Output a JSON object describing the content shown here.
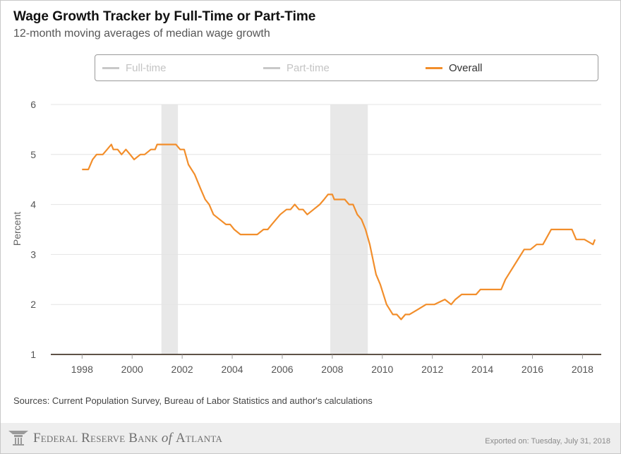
{
  "title": "Wage Growth Tracker by Full-Time or Part-Time",
  "subtitle": "12-month moving averages of median wage growth",
  "legend": [
    {
      "label": "Full-time",
      "color": "#c8c8c8",
      "active": false
    },
    {
      "label": "Part-time",
      "color": "#c8c8c8",
      "active": false
    },
    {
      "label": "Overall",
      "color": "#f28e2b",
      "active": true
    }
  ],
  "sources": "Sources: Current Population Survey, Bureau of Labor Statistics and author's calculations",
  "footer": {
    "bank_name_part1": "Federal Reserve Bank",
    "bank_name_of": "of",
    "bank_name_part2": "Atlanta",
    "exported": "Exported on: Tuesday, July 31, 2018",
    "logo_icon": "fed-eagle-logo-icon"
  },
  "chart_data": {
    "type": "line",
    "title": "Wage Growth Tracker by Full-Time or Part-Time",
    "subtitle": "12-month moving averages of median wage growth",
    "xlabel": "",
    "ylabel": "Percent",
    "xlim": [
      1996.75,
      2018.75
    ],
    "ylim": [
      1,
      6
    ],
    "yticks": [
      "1",
      "2",
      "3",
      "4",
      "5",
      "6"
    ],
    "xticks": [
      "1998",
      "2000",
      "2002",
      "2004",
      "2006",
      "2008",
      "2010",
      "2012",
      "2014",
      "2016",
      "2018"
    ],
    "grid": true,
    "line_color": "#f28e2b",
    "recessions": [
      [
        2001.17,
        2001.83
      ],
      [
        2007.92,
        2009.42
      ]
    ],
    "series": [
      {
        "name": "Overall",
        "x": [
          1998.0,
          1998.25,
          1998.42,
          1998.58,
          1998.83,
          1999.0,
          1999.17,
          1999.25,
          1999.42,
          1999.58,
          1999.75,
          1999.92,
          2000.08,
          2000.33,
          2000.5,
          2000.75,
          2000.92,
          2001.0,
          2001.17,
          2001.75,
          2001.92,
          2002.08,
          2002.25,
          2002.5,
          2002.75,
          2002.92,
          2003.08,
          2003.25,
          2003.5,
          2003.75,
          2003.92,
          2004.08,
          2004.33,
          2004.75,
          2005.0,
          2005.25,
          2005.42,
          2005.58,
          2005.75,
          2005.92,
          2006.17,
          2006.33,
          2006.5,
          2006.67,
          2006.83,
          2007.0,
          2007.25,
          2007.5,
          2007.67,
          2007.83,
          2008.0,
          2008.08,
          2008.17,
          2008.5,
          2008.67,
          2008.83,
          2009.0,
          2009.17,
          2009.33,
          2009.5,
          2009.75,
          2009.92,
          2010.17,
          2010.42,
          2010.58,
          2010.75,
          2010.92,
          2011.08,
          2011.42,
          2011.75,
          2011.92,
          2012.08,
          2012.5,
          2012.75,
          2012.92,
          2013.17,
          2013.5,
          2013.75,
          2013.92,
          2014.08,
          2014.33,
          2014.75,
          2014.92,
          2015.17,
          2015.42,
          2015.67,
          2015.92,
          2016.17,
          2016.42,
          2016.75,
          2017.0,
          2017.25,
          2017.58,
          2017.75,
          2018.08,
          2018.42,
          2018.5
        ],
        "values": [
          4.7,
          4.7,
          4.9,
          5.0,
          5.0,
          5.1,
          5.2,
          5.1,
          5.1,
          5.0,
          5.1,
          5.0,
          4.9,
          5.0,
          5.0,
          5.1,
          5.1,
          5.2,
          5.2,
          5.2,
          5.1,
          5.1,
          4.8,
          4.6,
          4.3,
          4.1,
          4.0,
          3.8,
          3.7,
          3.6,
          3.6,
          3.5,
          3.4,
          3.4,
          3.4,
          3.5,
          3.5,
          3.6,
          3.7,
          3.8,
          3.9,
          3.9,
          4.0,
          3.9,
          3.9,
          3.8,
          3.9,
          4.0,
          4.1,
          4.2,
          4.2,
          4.1,
          4.1,
          4.1,
          4.0,
          4.0,
          3.8,
          3.7,
          3.5,
          3.2,
          2.6,
          2.4,
          2.0,
          1.8,
          1.8,
          1.7,
          1.8,
          1.8,
          1.9,
          2.0,
          2.0,
          2.0,
          2.1,
          2.0,
          2.1,
          2.2,
          2.2,
          2.2,
          2.3,
          2.3,
          2.3,
          2.3,
          2.5,
          2.7,
          2.9,
          3.1,
          3.1,
          3.2,
          3.2,
          3.5,
          3.5,
          3.5,
          3.5,
          3.3,
          3.3,
          3.2,
          3.3
        ]
      }
    ]
  }
}
